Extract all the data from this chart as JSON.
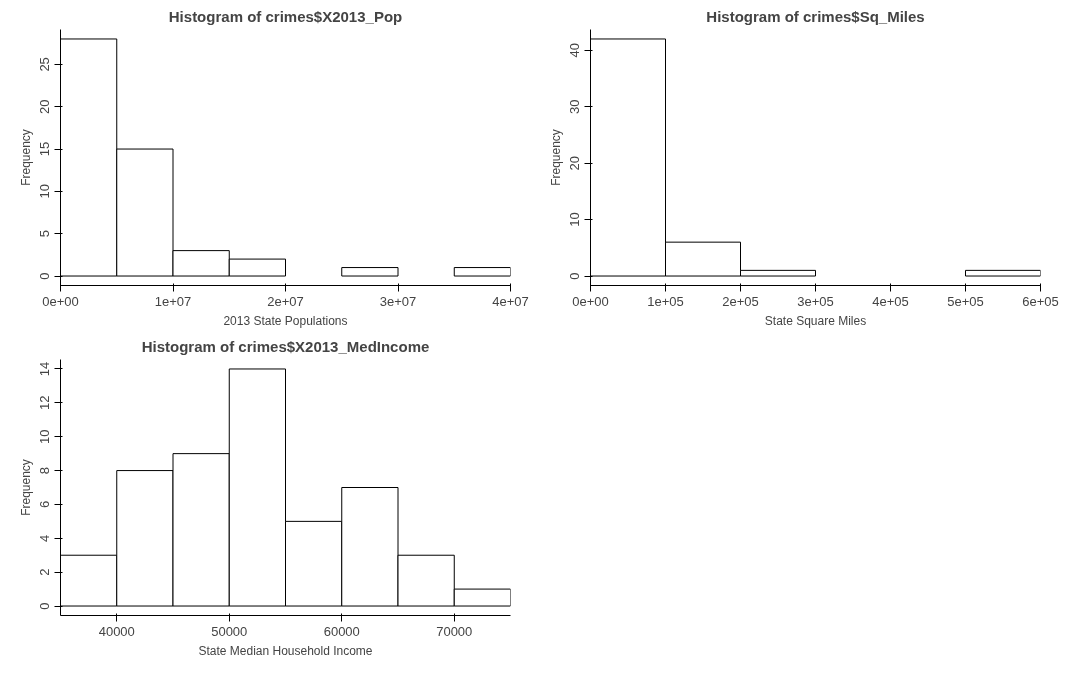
{
  "chart_data": [
    {
      "type": "histogram",
      "title": "Histogram of crimes$X2013_Pop",
      "xlabel": "2013 State Populations",
      "ylabel": "Frequency",
      "color": "#ffffff",
      "bins": [
        0,
        5000000,
        10000000,
        15000000,
        20000000,
        25000000,
        30000000,
        35000000,
        40000000
      ],
      "values": [
        28,
        15,
        3,
        2,
        0,
        1,
        0,
        1
      ],
      "xlim": [
        0,
        40000000
      ],
      "xticks": [
        {
          "value": 0,
          "label": "0e+00"
        },
        {
          "value": 10000000,
          "label": "1e+07"
        },
        {
          "value": 20000000,
          "label": "2e+07"
        },
        {
          "value": 30000000,
          "label": "3e+07"
        },
        {
          "value": 40000000,
          "label": "4e+07"
        }
      ],
      "ylim": [
        -1.12,
        29.12
      ],
      "yticks": [
        0,
        5,
        10,
        15,
        20,
        25
      ],
      "grid": false
    },
    {
      "type": "histogram",
      "title": "Histogram of crimes$Sq_Miles",
      "xlabel": "State Square Miles",
      "ylabel": "Frequency",
      "color": "#ffffff",
      "bins": [
        0,
        100000,
        200000,
        300000,
        400000,
        500000,
        600000
      ],
      "values": [
        42,
        6,
        1,
        0,
        0,
        1
      ],
      "xlim": [
        0,
        600000
      ],
      "xticks": [
        {
          "value": 0,
          "label": "0e+00"
        },
        {
          "value": 100000,
          "label": "1e+05"
        },
        {
          "value": 200000,
          "label": "2e+05"
        },
        {
          "value": 300000,
          "label": "3e+05"
        },
        {
          "value": 400000,
          "label": "4e+05"
        },
        {
          "value": 500000,
          "label": "5e+05"
        },
        {
          "value": 600000,
          "label": "6e+05"
        }
      ],
      "ylim": [
        -1.68,
        43.68
      ],
      "yticks": [
        0,
        10,
        20,
        30,
        40
      ],
      "grid": false
    },
    {
      "type": "histogram",
      "title": "Histogram of crimes$X2013_MedIncome",
      "xlabel": "State Median Household Income",
      "ylabel": "Frequency",
      "color": "#ffffff",
      "bins": [
        35000,
        40000,
        45000,
        50000,
        55000,
        60000,
        65000,
        70000,
        75000
      ],
      "values": [
        3,
        8,
        9,
        14,
        5,
        7,
        3,
        1
      ],
      "xlim": [
        35000,
        75000
      ],
      "xticks": [
        40000,
        50000,
        60000,
        70000
      ],
      "ylim": [
        -0.56,
        14.56
      ],
      "yticks": [
        0,
        2,
        4,
        6,
        8,
        10,
        12,
        14
      ],
      "grid": false
    }
  ]
}
